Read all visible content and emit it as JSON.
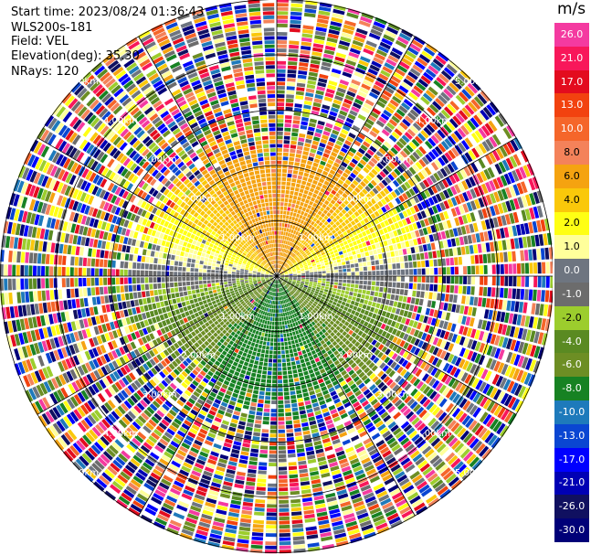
{
  "header": {
    "start_time": "Start time: 2023/08/24 01:36:43",
    "instrument": "WLS200s-181",
    "field": "Field: VEL",
    "elevation": "Elevation(deg): 35.30",
    "nrays": "NRays: 120"
  },
  "colorbar": {
    "title": "m/s",
    "bins": [
      {
        "label": "26.0",
        "color": "#f43aa0"
      },
      {
        "label": "21.0",
        "color": "#f8175a"
      },
      {
        "label": "17.0",
        "color": "#e30c1e"
      },
      {
        "label": "13.0",
        "color": "#f2420f"
      },
      {
        "label": "10.0",
        "color": "#f5662a"
      },
      {
        "label": "8.0",
        "color": "#f4825a"
      },
      {
        "label": "6.0",
        "color": "#f5a310"
      },
      {
        "label": "4.0",
        "color": "#fac80a"
      },
      {
        "label": "2.0",
        "color": "#ffff14"
      },
      {
        "label": "1.0",
        "color": "#ffff9b"
      },
      {
        "label": "0.0",
        "color": "#6e7580"
      },
      {
        "label": "-1.0",
        "color": "#6c6c6c"
      },
      {
        "label": "-2.0",
        "color": "#9ccd2d"
      },
      {
        "label": "-4.0",
        "color": "#5a8a22"
      },
      {
        "label": "-6.0",
        "color": "#6d8e24"
      },
      {
        "label": "-8.0",
        "color": "#178223"
      },
      {
        "label": "-10.0",
        "color": "#1e7abb"
      },
      {
        "label": "-13.0",
        "color": "#0a46d2"
      },
      {
        "label": "-17.0",
        "color": "#0000ff"
      },
      {
        "label": "-21.0",
        "color": "#0000b4"
      },
      {
        "label": "-26.0",
        "color": "#101060"
      },
      {
        "label": "-30.0",
        "color": "#000078"
      }
    ]
  },
  "chart_data": {
    "type": "heatmap",
    "projection": "PPI polar",
    "field": "VEL",
    "units": "m/s",
    "nrays": 120,
    "range_rings_km": [
      1.0,
      2.0,
      3.0,
      4.0,
      5.0
    ],
    "ring_labels": [
      "1.00km",
      "2.00km",
      "3.00km",
      "4.00km",
      "5.00km"
    ],
    "max_range_km": 5.0,
    "clean_signal_range_km": 2.0,
    "velocity_pattern": {
      "north_half": "positive 1 to 10 m/s (yellow-orange, peak ~6-8 m/s near NNW-NE)",
      "south_half": "negative -1 to -8 m/s (green)",
      "east_west_axis": "near 0 m/s (gray)",
      "beyond_range": "noise spanning -30 to 26 m/s"
    }
  }
}
